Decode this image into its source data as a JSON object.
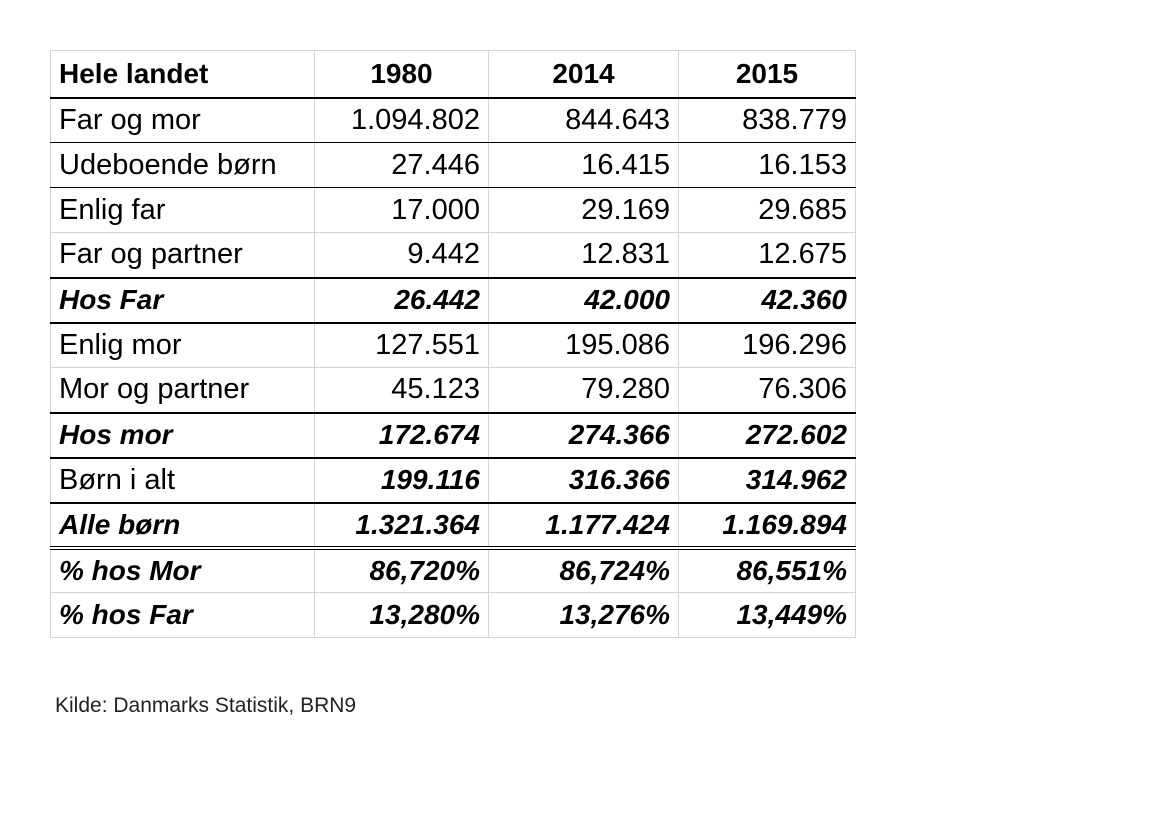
{
  "chart_data": {
    "type": "table",
    "columns": [
      "Hele landet",
      "1980",
      "2014",
      "2015"
    ],
    "rows": [
      {
        "label": "Far og mor",
        "values": [
          "1.094.802",
          "844.643",
          "838.779"
        ],
        "style": "normal"
      },
      {
        "label": "Udeboende børn",
        "values": [
          "27.446",
          "16.415",
          "16.153"
        ],
        "style": "normal"
      },
      {
        "label": "Enlig far",
        "values": [
          "17.000",
          "29.169",
          "29.685"
        ],
        "style": "normal"
      },
      {
        "label": "Far og partner",
        "values": [
          "9.442",
          "12.831",
          "12.675"
        ],
        "style": "normal"
      },
      {
        "label": "Hos Far",
        "values": [
          "26.442",
          "42.000",
          "42.360"
        ],
        "style": "bold-italic"
      },
      {
        "label": "Enlig mor",
        "values": [
          "127.551",
          "195.086",
          "196.296"
        ],
        "style": "normal"
      },
      {
        "label": "Mor og partner",
        "values": [
          "45.123",
          "79.280",
          "76.306"
        ],
        "style": "normal"
      },
      {
        "label": "Hos mor",
        "values": [
          "172.674",
          "274.366",
          "272.602"
        ],
        "style": "bold-italic"
      },
      {
        "label": "Børn i alt",
        "values": [
          "199.116",
          "316.366",
          "314.962"
        ],
        "style": "values-bold-italic"
      },
      {
        "label": "Alle børn",
        "values": [
          "1.321.364",
          "1.177.424",
          "1.169.894"
        ],
        "style": "bold-italic"
      },
      {
        "label": "% hos Mor",
        "values": [
          "86,720%",
          "86,724%",
          "86,551%"
        ],
        "style": "bold-italic"
      },
      {
        "label": "% hos Far",
        "values": [
          "13,280%",
          "13,276%",
          "13,449%"
        ],
        "style": "bold-italic"
      }
    ]
  },
  "source_note": "Kilde: Danmarks Statistik, BRN9"
}
